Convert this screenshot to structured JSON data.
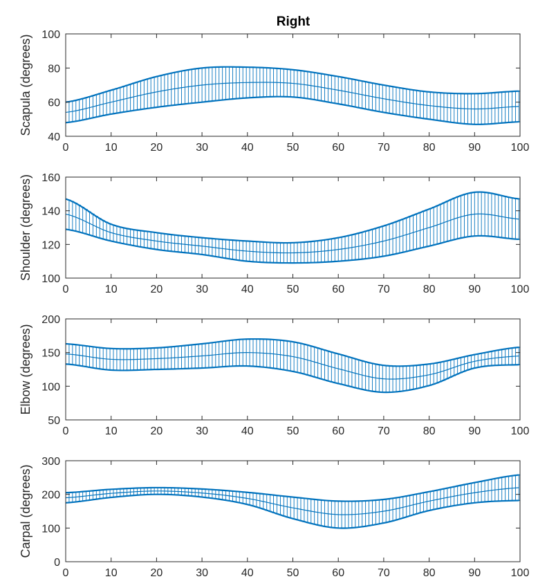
{
  "figure": {
    "title": "Right"
  },
  "colors": {
    "series": "#0072BD",
    "axis": "#262626",
    "background": "#ffffff"
  },
  "chart_data": [
    {
      "type": "line",
      "title": "Right",
      "xlabel": "",
      "ylabel": "Scapula (degrees)",
      "xlim": [
        0,
        100
      ],
      "ylim": [
        40,
        100
      ],
      "xticks": [
        0,
        10,
        20,
        30,
        40,
        50,
        60,
        70,
        80,
        90,
        100
      ],
      "yticks": [
        40,
        60,
        80,
        100
      ],
      "error_bars": true,
      "grid": false,
      "mean_curve": {
        "x": [
          0,
          10,
          20,
          30,
          40,
          50,
          60,
          70,
          80,
          90,
          100
        ],
        "y": [
          54,
          60,
          66,
          70,
          71.5,
          71,
          67,
          62,
          58,
          56,
          57.5
        ]
      },
      "spread": {
        "x": [
          0,
          10,
          20,
          30,
          40,
          50,
          60,
          70,
          80,
          90,
          100
        ],
        "y": [
          6,
          7,
          9,
          10,
          9,
          8,
          8,
          8,
          8,
          9,
          9
        ]
      }
    },
    {
      "type": "line",
      "title": "",
      "xlabel": "",
      "ylabel": "Shoulder (degrees)",
      "xlim": [
        0,
        100
      ],
      "ylim": [
        100,
        160
      ],
      "xticks": [
        0,
        10,
        20,
        30,
        40,
        50,
        60,
        70,
        80,
        90,
        100
      ],
      "yticks": [
        100,
        120,
        140,
        160
      ],
      "error_bars": true,
      "grid": false,
      "mean_curve": {
        "x": [
          0,
          10,
          20,
          30,
          40,
          50,
          60,
          70,
          80,
          90,
          100
        ],
        "y": [
          138,
          127,
          122,
          119,
          116,
          115,
          117,
          122,
          130,
          138,
          135
        ]
      },
      "spread": {
        "x": [
          0,
          10,
          20,
          30,
          40,
          50,
          60,
          70,
          80,
          90,
          100
        ],
        "y": [
          9,
          5,
          5,
          5,
          6,
          6,
          7,
          9,
          11,
          13,
          12
        ]
      }
    },
    {
      "type": "line",
      "title": "",
      "xlabel": "",
      "ylabel": "Elbow (degrees)",
      "xlim": [
        0,
        100
      ],
      "ylim": [
        50,
        200
      ],
      "xticks": [
        0,
        10,
        20,
        30,
        40,
        50,
        60,
        70,
        80,
        90,
        100
      ],
      "yticks": [
        50,
        100,
        150,
        200
      ],
      "error_bars": true,
      "grid": false,
      "mean_curve": {
        "x": [
          0,
          10,
          20,
          30,
          40,
          50,
          60,
          70,
          80,
          90,
          100
        ],
        "y": [
          148,
          140,
          141,
          145,
          150,
          144,
          126,
          111,
          117,
          137,
          145
        ]
      },
      "spread": {
        "x": [
          0,
          10,
          20,
          30,
          40,
          50,
          60,
          70,
          80,
          90,
          100
        ],
        "y": [
          15,
          16,
          16,
          18,
          20,
          22,
          22,
          20,
          16,
          10,
          13
        ]
      }
    },
    {
      "type": "line",
      "title": "",
      "xlabel": "",
      "ylabel": "Carpal (degrees)",
      "xlim": [
        0,
        100
      ],
      "ylim": [
        0,
        300
      ],
      "xticks": [
        0,
        10,
        20,
        30,
        40,
        50,
        60,
        70,
        80,
        90,
        100
      ],
      "yticks": [
        0,
        100,
        200,
        300
      ],
      "error_bars": true,
      "grid": false,
      "mean_curve": {
        "x": [
          0,
          10,
          20,
          30,
          40,
          50,
          60,
          70,
          80,
          90,
          100
        ],
        "y": [
          190,
          203,
          210,
          204,
          188,
          160,
          140,
          150,
          180,
          205,
          220
        ]
      },
      "spread": {
        "x": [
          0,
          10,
          20,
          30,
          40,
          50,
          60,
          70,
          80,
          90,
          100
        ],
        "y": [
          15,
          12,
          10,
          12,
          18,
          32,
          40,
          35,
          28,
          30,
          38
        ]
      }
    }
  ]
}
